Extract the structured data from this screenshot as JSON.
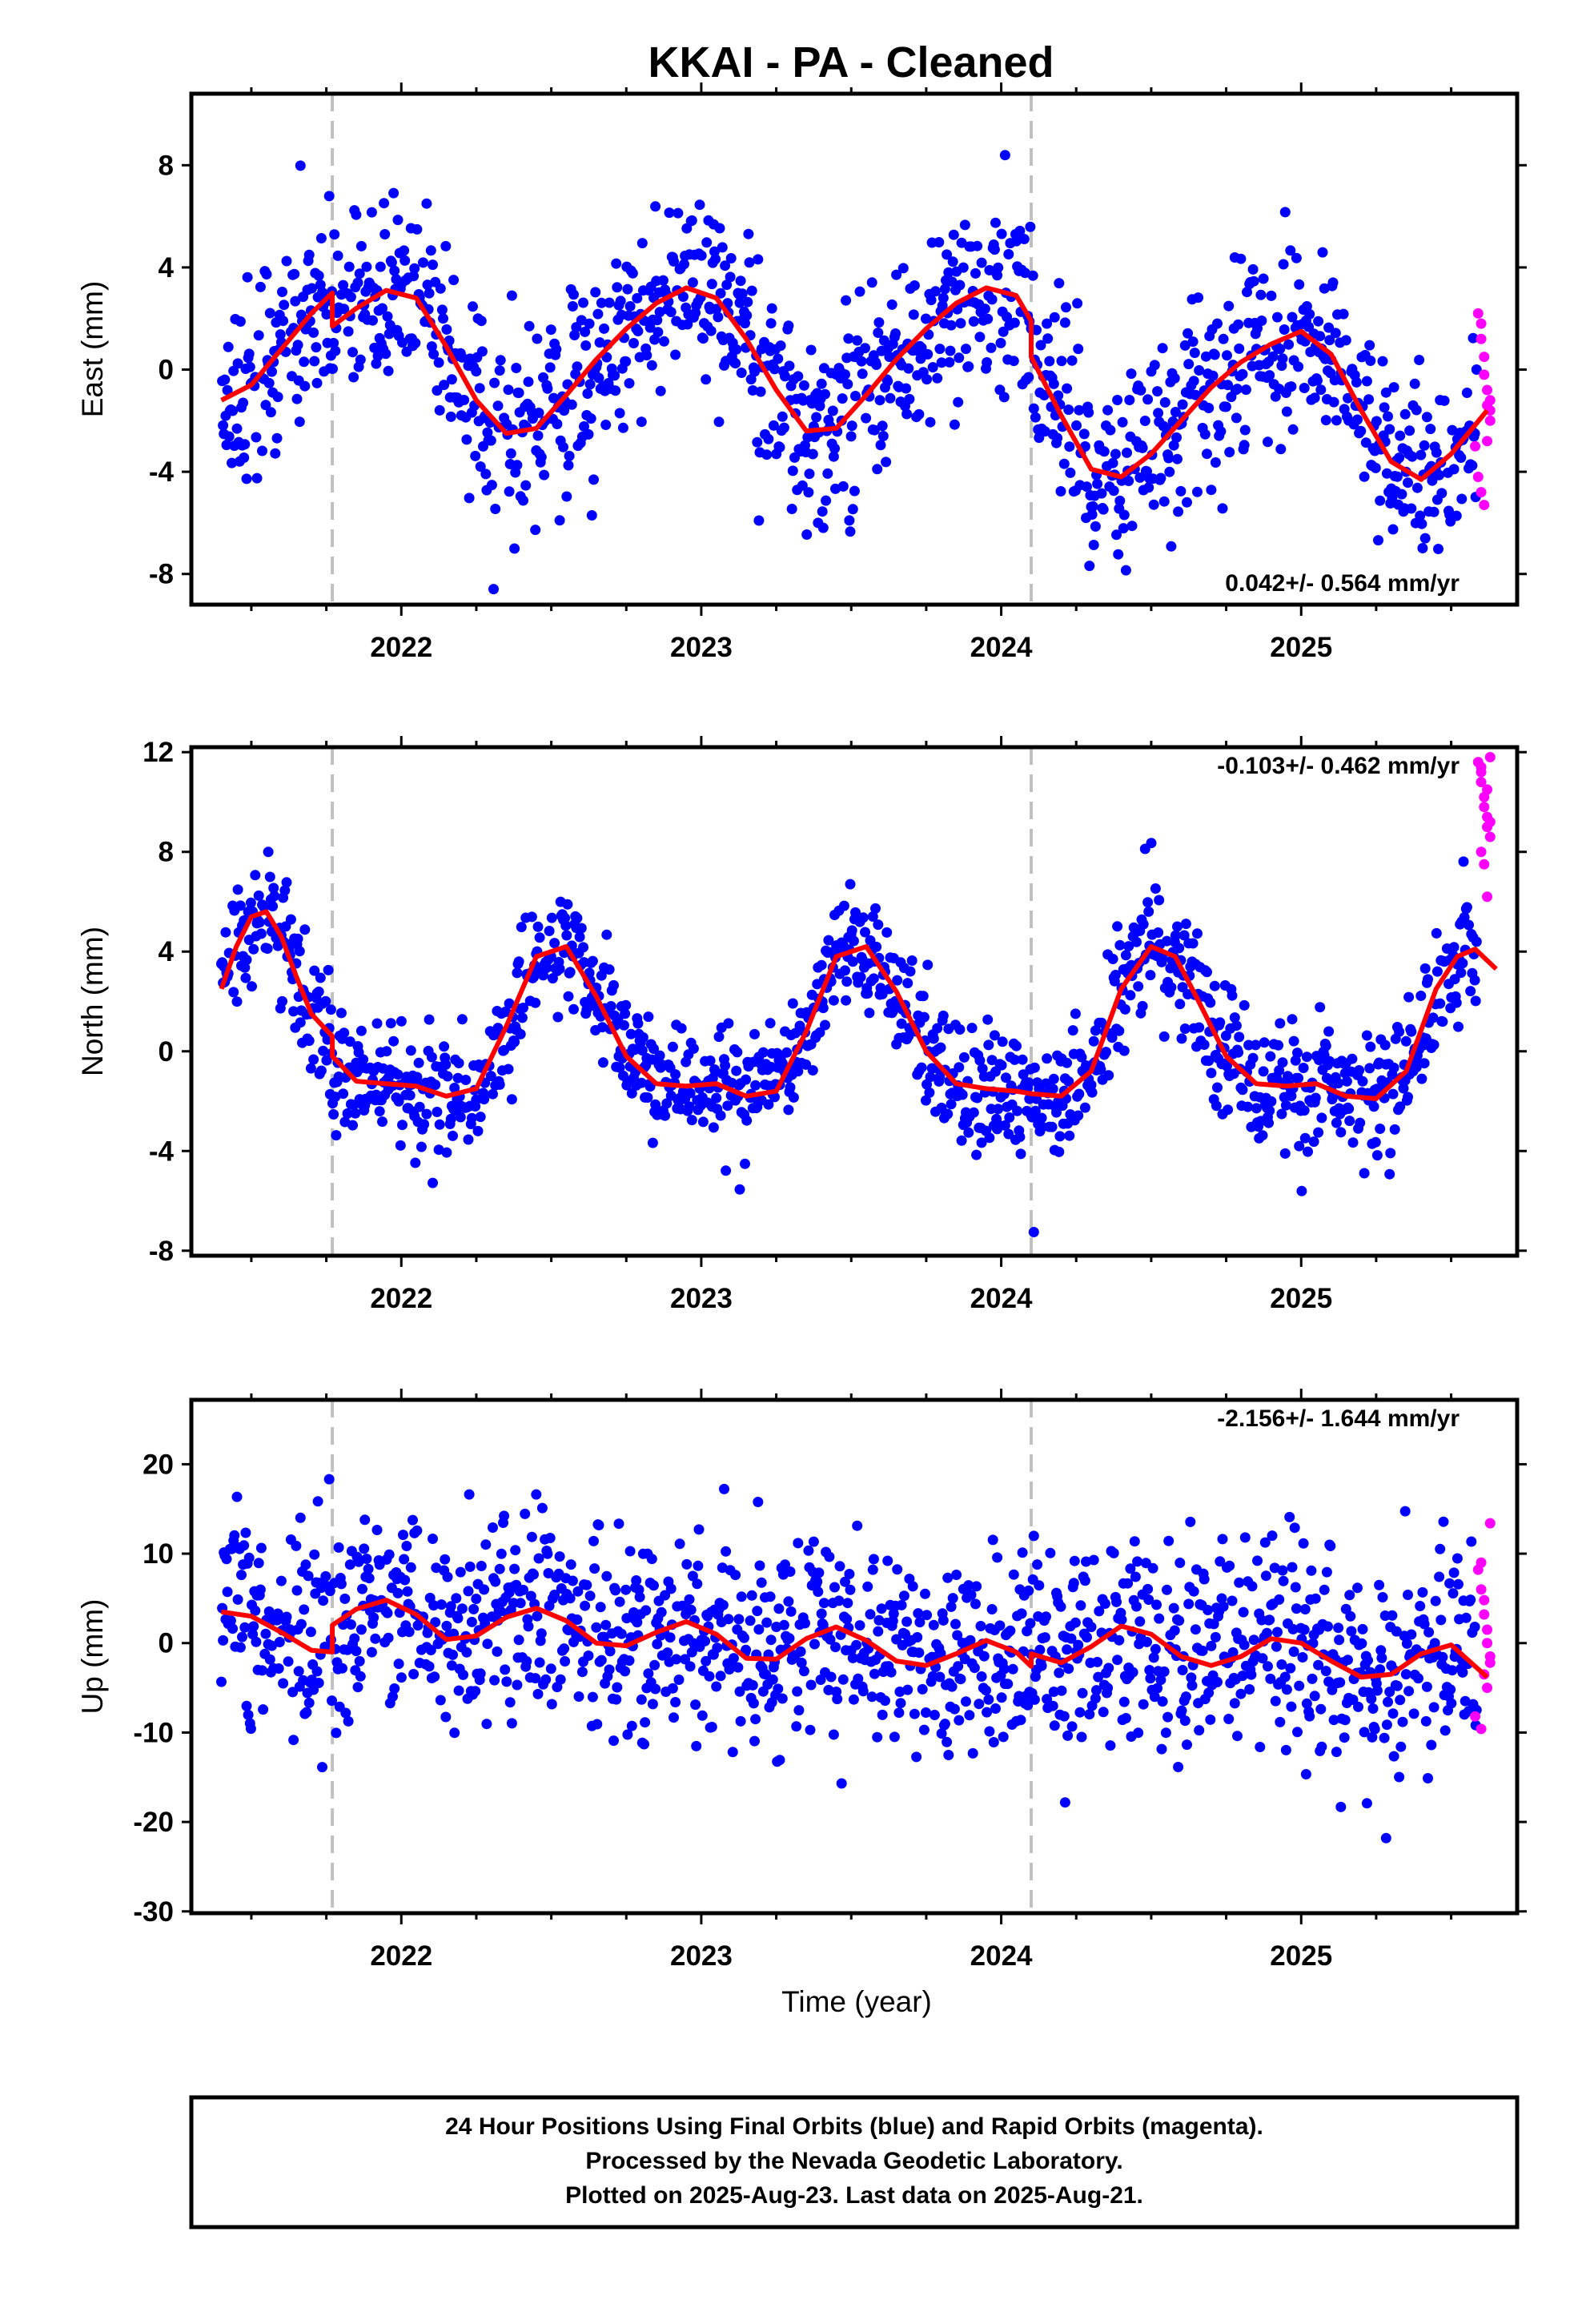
{
  "title": "KKAI  - PA - Cleaned",
  "xlabel": "Time (year)",
  "footer": {
    "lines": [
      "24 Hour Positions Using Final Orbits (blue) and Rapid Orbits (magenta).",
      "Processed by the Nevada Geodetic Laboratory.",
      "Plotted on 2025-Aug-23. Last data on 2025-Aug-21."
    ]
  },
  "colors": {
    "final_orbits": "#0000ff",
    "rapid_orbits": "#ff00ff",
    "model_fit": "#ff0000",
    "equipment_change": "#c0c0c0"
  },
  "chart_data": [
    {
      "type": "scatter",
      "component": "east",
      "ylabel": "East (mm)",
      "rate_label": "0.042+/- 0.564 mm/yr",
      "rate_position": "bottom-right",
      "xlim": [
        2021.3,
        2025.72
      ],
      "ylim": [
        -9.2,
        10.8
      ],
      "yticks": [
        -8,
        -4,
        0,
        4,
        8
      ],
      "xticks": [
        2022,
        2023,
        2024,
        2025
      ],
      "grid": false,
      "offsets": [
        2021.77,
        2024.1
      ],
      "model": {
        "name": "model fit",
        "x": [
          2021.4,
          2021.5,
          2021.6,
          2021.7,
          2021.77,
          2021.77,
          2021.85,
          2021.95,
          2022.05,
          2022.15,
          2022.25,
          2022.35,
          2022.45,
          2022.55,
          2022.65,
          2022.75,
          2022.85,
          2022.95,
          2023.05,
          2023.15,
          2023.25,
          2023.35,
          2023.45,
          2023.55,
          2023.65,
          2023.75,
          2023.85,
          2023.95,
          2024.05,
          2024.1,
          2024.1,
          2024.2,
          2024.3,
          2024.4,
          2024.5,
          2024.6,
          2024.7,
          2024.8,
          2024.9,
          2025.0,
          2025.1,
          2025.2,
          2025.3,
          2025.4,
          2025.5,
          2025.62
        ],
        "y": [
          -1.2,
          -0.6,
          0.8,
          2.2,
          3.0,
          1.7,
          2.4,
          3.1,
          2.8,
          0.9,
          -1.2,
          -2.5,
          -2.3,
          -1.0,
          0.4,
          1.6,
          2.6,
          3.2,
          2.8,
          1.2,
          -0.8,
          -2.4,
          -2.3,
          -1.0,
          0.4,
          1.6,
          2.6,
          3.2,
          2.9,
          1.9,
          0.5,
          -1.8,
          -3.9,
          -4.2,
          -3.3,
          -2.0,
          -0.7,
          0.3,
          1.0,
          1.5,
          0.6,
          -1.6,
          -3.6,
          -4.3,
          -3.3,
          -1.6
        ]
      },
      "rapid": {
        "x": [
          2025.59,
          2025.6,
          2025.6,
          2025.61,
          2025.61,
          2025.62,
          2025.62,
          2025.63,
          2025.63,
          2025.58,
          2025.59,
          2025.6,
          2025.61,
          2025.62,
          2025.63
        ],
        "y": [
          2.2,
          1.8,
          1.2,
          0.5,
          -0.2,
          -0.8,
          -1.4,
          -2.0,
          -1.6,
          -3.0,
          -4.2,
          -4.8,
          -5.3,
          -2.8,
          -1.2
        ]
      }
    },
    {
      "type": "scatter",
      "component": "north",
      "ylabel": "North (mm)",
      "rate_label": "-0.103+/- 0.462 mm/yr",
      "rate_position": "top-right",
      "xlim": [
        2021.3,
        2025.72
      ],
      "ylim": [
        -8.2,
        12.2
      ],
      "yticks": [
        -8,
        -4,
        0,
        4,
        8,
        12
      ],
      "xticks": [
        2022,
        2023,
        2024,
        2025
      ],
      "grid": false,
      "offsets": [
        2021.77,
        2024.1
      ],
      "model": {
        "name": "model fit",
        "x": [
          2021.4,
          2021.45,
          2021.5,
          2021.55,
          2021.6,
          2021.65,
          2021.7,
          2021.77,
          2021.77,
          2021.85,
          2021.95,
          2022.05,
          2022.15,
          2022.25,
          2022.35,
          2022.45,
          2022.55,
          2022.65,
          2022.75,
          2022.85,
          2022.95,
          2023.05,
          2023.15,
          2023.25,
          2023.35,
          2023.45,
          2023.55,
          2023.65,
          2023.75,
          2023.85,
          2023.95,
          2024.05,
          2024.1,
          2024.1,
          2024.2,
          2024.3,
          2024.4,
          2024.5,
          2024.58,
          2024.65,
          2024.75,
          2024.85,
          2024.95,
          2025.05,
          2025.15,
          2025.25,
          2025.35,
          2025.45,
          2025.52,
          2025.58,
          2025.65
        ],
        "y": [
          2.5,
          4.2,
          5.4,
          5.6,
          4.6,
          3.0,
          1.5,
          0.6,
          -0.2,
          -1.2,
          -1.3,
          -1.4,
          -1.8,
          -1.5,
          1.0,
          3.8,
          4.2,
          2.2,
          -0.2,
          -1.3,
          -1.4,
          -1.3,
          -1.8,
          -1.6,
          0.8,
          3.8,
          4.2,
          2.4,
          0.0,
          -1.3,
          -1.5,
          -1.6,
          -1.7,
          -1.7,
          -1.8,
          -0.8,
          2.5,
          4.2,
          3.8,
          2.2,
          -0.2,
          -1.3,
          -1.4,
          -1.3,
          -1.8,
          -1.9,
          -0.8,
          2.5,
          3.8,
          4.1,
          3.3
        ]
      },
      "rapid": {
        "x": [
          2025.59,
          2025.6,
          2025.6,
          2025.61,
          2025.61,
          2025.62,
          2025.62,
          2025.63,
          2025.63,
          2025.6,
          2025.61,
          2025.62,
          2025.63,
          2025.6,
          2025.62
        ],
        "y": [
          11.6,
          11.2,
          10.8,
          10.2,
          9.8,
          9.4,
          9.0,
          8.6,
          11.8,
          8.0,
          7.5,
          10.5,
          9.2,
          11.4,
          6.2
        ]
      }
    },
    {
      "type": "scatter",
      "component": "up",
      "ylabel": "Up (mm)",
      "rate_label": "-2.156+/- 1.644 mm/yr",
      "rate_position": "top-right",
      "xlim": [
        2021.3,
        2025.72
      ],
      "ylim": [
        -30.2,
        27.2
      ],
      "yticks": [
        -30,
        -20,
        -10,
        0,
        10,
        20
      ],
      "xticks": [
        2022,
        2023,
        2024,
        2025
      ],
      "grid": false,
      "offsets": [
        2021.77,
        2024.1
      ],
      "model": {
        "name": "model fit",
        "x": [
          2021.4,
          2021.5,
          2021.6,
          2021.7,
          2021.77,
          2021.77,
          2021.85,
          2021.95,
          2022.05,
          2022.15,
          2022.25,
          2022.35,
          2022.45,
          2022.55,
          2022.65,
          2022.75,
          2022.85,
          2022.95,
          2023.05,
          2023.15,
          2023.25,
          2023.35,
          2023.45,
          2023.55,
          2023.65,
          2023.75,
          2023.85,
          2023.95,
          2024.05,
          2024.1,
          2024.1,
          2024.2,
          2024.3,
          2024.4,
          2024.5,
          2024.6,
          2024.7,
          2024.8,
          2024.9,
          2025.0,
          2025.1,
          2025.2,
          2025.3,
          2025.4,
          2025.5,
          2025.62
        ],
        "y": [
          3.5,
          3.0,
          1.2,
          -0.8,
          -1.0,
          2.0,
          3.8,
          4.8,
          3.2,
          0.4,
          0.8,
          2.9,
          3.9,
          2.5,
          0.0,
          -0.3,
          1.2,
          2.4,
          1.0,
          -1.7,
          -1.8,
          0.5,
          1.8,
          0.3,
          -2.0,
          -2.5,
          -1.2,
          0.3,
          -1.0,
          -2.6,
          -1.2,
          -2.2,
          -0.4,
          1.9,
          1.0,
          -1.5,
          -2.5,
          -1.5,
          0.5,
          0.0,
          -2.0,
          -3.8,
          -3.5,
          -1.2,
          -0.2,
          -3.8
        ]
      },
      "rapid": {
        "x": [
          2025.59,
          2025.6,
          2025.6,
          2025.61,
          2025.61,
          2025.62,
          2025.62,
          2025.63,
          2025.63,
          2025.58,
          2025.6,
          2025.61,
          2025.62,
          2025.63
        ],
        "y": [
          8.2,
          9.0,
          6.0,
          4.8,
          3.2,
          1.5,
          0.0,
          -1.5,
          13.4,
          -8.2,
          -9.6,
          -3.5,
          -5.0,
          -2.2
        ]
      }
    }
  ]
}
